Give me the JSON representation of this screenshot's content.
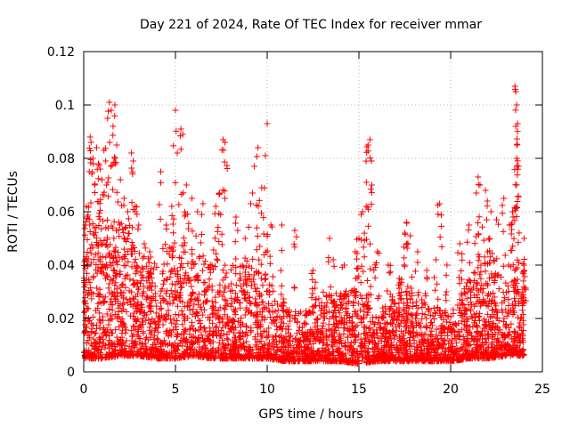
{
  "chart_data": {
    "type": "scatter",
    "title": "Day 221 of 2024, Rate Of TEC Index for receiver mmar",
    "xlabel": "GPS time / hours",
    "ylabel": "ROTI / TECUs",
    "xlim": [
      0,
      25
    ],
    "ylim": [
      0,
      0.12
    ],
    "xticks": [
      0,
      5,
      10,
      15,
      20,
      25
    ],
    "xtick_labels": [
      "0",
      "5",
      "10",
      "15",
      "20",
      "25"
    ],
    "yticks": [
      0,
      0.02,
      0.04,
      0.06,
      0.08,
      0.1,
      0.12
    ],
    "ytick_labels": [
      "0",
      "0.02",
      "0.04",
      "0.06",
      "0.08",
      "0.1",
      "0.12"
    ],
    "grid": true,
    "marker": "+",
    "marker_color": "#ff0000",
    "points": [
      [
        0.1,
        0.055
      ],
      [
        0.15,
        0.062
      ],
      [
        0.2,
        0.058
      ],
      [
        0.3,
        0.075
      ],
      [
        0.35,
        0.088
      ],
      [
        0.4,
        0.086
      ],
      [
        0.5,
        0.08
      ],
      [
        0.6,
        0.07
      ],
      [
        0.7,
        0.084
      ],
      [
        0.8,
        0.078
      ],
      [
        0.9,
        0.076
      ],
      [
        1.0,
        0.072
      ],
      [
        1.1,
        0.083
      ],
      [
        1.2,
        0.079
      ],
      [
        1.3,
        0.095
      ],
      [
        1.4,
        0.101
      ],
      [
        1.5,
        0.098
      ],
      [
        1.6,
        0.092
      ],
      [
        1.7,
        0.1
      ],
      [
        1.8,
        0.085
      ],
      [
        2.0,
        0.072
      ],
      [
        2.2,
        0.065
      ],
      [
        2.4,
        0.06
      ],
      [
        2.6,
        0.082
      ],
      [
        2.7,
        0.079
      ],
      [
        2.8,
        0.062
      ],
      [
        3.0,
        0.055
      ],
      [
        3.3,
        0.048
      ],
      [
        3.6,
        0.045
      ],
      [
        4.2,
        0.075
      ],
      [
        4.5,
        0.055
      ],
      [
        4.8,
        0.062
      ],
      [
        5.0,
        0.098
      ],
      [
        5.1,
        0.082
      ],
      [
        5.3,
        0.091
      ],
      [
        5.4,
        0.089
      ],
      [
        5.6,
        0.07
      ],
      [
        5.9,
        0.065
      ],
      [
        6.2,
        0.06
      ],
      [
        6.5,
        0.063
      ],
      [
        7.2,
        0.062
      ],
      [
        7.4,
        0.067
      ],
      [
        7.6,
        0.087
      ],
      [
        7.7,
        0.086
      ],
      [
        8.3,
        0.058
      ],
      [
        8.8,
        0.05
      ],
      [
        9.1,
        0.063
      ],
      [
        9.3,
        0.077
      ],
      [
        9.5,
        0.084
      ],
      [
        9.7,
        0.069
      ],
      [
        9.9,
        0.081
      ],
      [
        10.0,
        0.093
      ],
      [
        10.2,
        0.055
      ],
      [
        10.8,
        0.055
      ],
      [
        11.5,
        0.053
      ],
      [
        12.5,
        0.038
      ],
      [
        13.4,
        0.05
      ],
      [
        13.6,
        0.042
      ],
      [
        14.2,
        0.04
      ],
      [
        14.8,
        0.045
      ],
      [
        15.0,
        0.05
      ],
      [
        15.2,
        0.06
      ],
      [
        15.4,
        0.062
      ],
      [
        15.5,
        0.085
      ],
      [
        15.6,
        0.087
      ],
      [
        15.7,
        0.07
      ],
      [
        16.0,
        0.045
      ],
      [
        16.6,
        0.04
      ],
      [
        17.2,
        0.035
      ],
      [
        17.5,
        0.052
      ],
      [
        17.6,
        0.056
      ],
      [
        17.8,
        0.051
      ],
      [
        18.2,
        0.045
      ],
      [
        18.7,
        0.038
      ],
      [
        19.2,
        0.042
      ],
      [
        19.4,
        0.063
      ],
      [
        19.8,
        0.04
      ],
      [
        20.5,
        0.048
      ],
      [
        21.0,
        0.055
      ],
      [
        21.4,
        0.067
      ],
      [
        21.5,
        0.073
      ],
      [
        21.6,
        0.07
      ],
      [
        21.9,
        0.068
      ],
      [
        22.0,
        0.064
      ],
      [
        22.2,
        0.06
      ],
      [
        22.5,
        0.057
      ],
      [
        22.9,
        0.065
      ],
      [
        23.2,
        0.055
      ],
      [
        23.4,
        0.058
      ],
      [
        23.5,
        0.107
      ],
      [
        23.55,
        0.105
      ],
      [
        23.6,
        0.1
      ],
      [
        23.65,
        0.093
      ],
      [
        23.55,
        0.092
      ],
      [
        23.6,
        0.08
      ],
      [
        23.6,
        0.07
      ],
      [
        24.0,
        0.05
      ],
      [
        24.0,
        0.04
      ]
    ],
    "band": {
      "description_values": "dense background: ROTI mostly 0.003-0.03 across all hours",
      "x_start": 0,
      "x_end": 24,
      "envelope_hours": [
        0,
        1,
        2,
        3,
        4,
        5,
        6,
        7,
        8,
        9,
        10,
        11,
        12,
        13,
        14,
        15,
        16,
        17,
        18,
        19,
        20,
        21,
        22,
        23,
        24
      ],
      "envelope_upper": [
        0.05,
        0.06,
        0.055,
        0.045,
        0.04,
        0.05,
        0.045,
        0.04,
        0.04,
        0.04,
        0.035,
        0.025,
        0.022,
        0.03,
        0.03,
        0.032,
        0.022,
        0.03,
        0.03,
        0.025,
        0.022,
        0.035,
        0.045,
        0.04,
        0.03
      ],
      "envelope_lower": [
        0.005,
        0.005,
        0.006,
        0.006,
        0.005,
        0.005,
        0.006,
        0.005,
        0.005,
        0.005,
        0.005,
        0.004,
        0.004,
        0.004,
        0.004,
        0.003,
        0.004,
        0.004,
        0.004,
        0.004,
        0.004,
        0.005,
        0.005,
        0.006,
        0.006
      ]
    }
  }
}
